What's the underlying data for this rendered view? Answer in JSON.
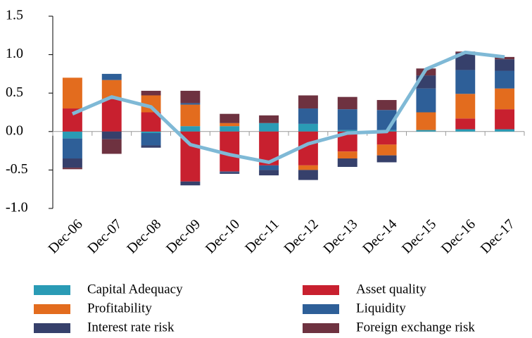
{
  "chart_data": {
    "type": "bar",
    "stacked": true,
    "categories": [
      "Dec-06",
      "Dec-07",
      "Dec-08",
      "Dec-09",
      "Dec-10",
      "Dec-11",
      "Dec-12",
      "Dec-13",
      "Dec-14",
      "Dec-15",
      "Dec-16",
      "Dec-17"
    ],
    "series": [
      {
        "name": "Capital Adequacy",
        "color": "#2a9bb5",
        "values": [
          -0.09,
          0,
          -0.02,
          0.07,
          0.07,
          0.11,
          0.1,
          0.02,
          0.02,
          0.02,
          0.03,
          0.03
        ]
      },
      {
        "name": "Asset quality",
        "color": "#c8202f",
        "values": [
          0.3,
          0.42,
          0.25,
          -0.65,
          -0.52,
          -0.44,
          -0.44,
          -0.26,
          -0.17,
          0,
          0.14,
          0.26
        ]
      },
      {
        "name": "Profitability",
        "color": "#e36c1e",
        "values": [
          0.4,
          0.25,
          0.22,
          0.28,
          0.04,
          0,
          -0.06,
          -0.09,
          -0.14,
          0.23,
          0.32,
          0.27
        ]
      },
      {
        "name": "Liquidity",
        "color": "#2e5f98",
        "values": [
          -0.26,
          0.08,
          -0.16,
          0.02,
          -0.01,
          -0.06,
          0.2,
          0.27,
          0.26,
          0.31,
          0.31,
          0.23
        ]
      },
      {
        "name": "Interest rate risk",
        "color": "#36406b",
        "values": [
          -0.12,
          -0.1,
          -0.03,
          -0.05,
          -0.02,
          -0.07,
          -0.13,
          -0.11,
          -0.09,
          0.17,
          0.22,
          0.15
        ]
      },
      {
        "name": "Foreign exchange risk",
        "color": "#6e3240",
        "values": [
          -0.02,
          -0.19,
          0.06,
          0.16,
          0.12,
          0.1,
          0.17,
          0.16,
          0.13,
          0.09,
          0.02,
          0.03
        ]
      }
    ],
    "line": {
      "type": "line",
      "color": "#7fb9d6",
      "values": [
        0.23,
        0.45,
        0.32,
        -0.17,
        -0.3,
        -0.4,
        -0.16,
        -0.02,
        0.0,
        0.81,
        1.03,
        0.97
      ]
    },
    "ylim": [
      -1,
      1.5
    ],
    "yticks": [
      -1,
      {
        "value": -1,
        "label": "-1.0"
      },
      -0.5,
      {
        "value": 0,
        "label": "0.0"
      },
      0.5,
      {
        "value": 1,
        "label": "1.0"
      },
      1.5
    ]
  }
}
